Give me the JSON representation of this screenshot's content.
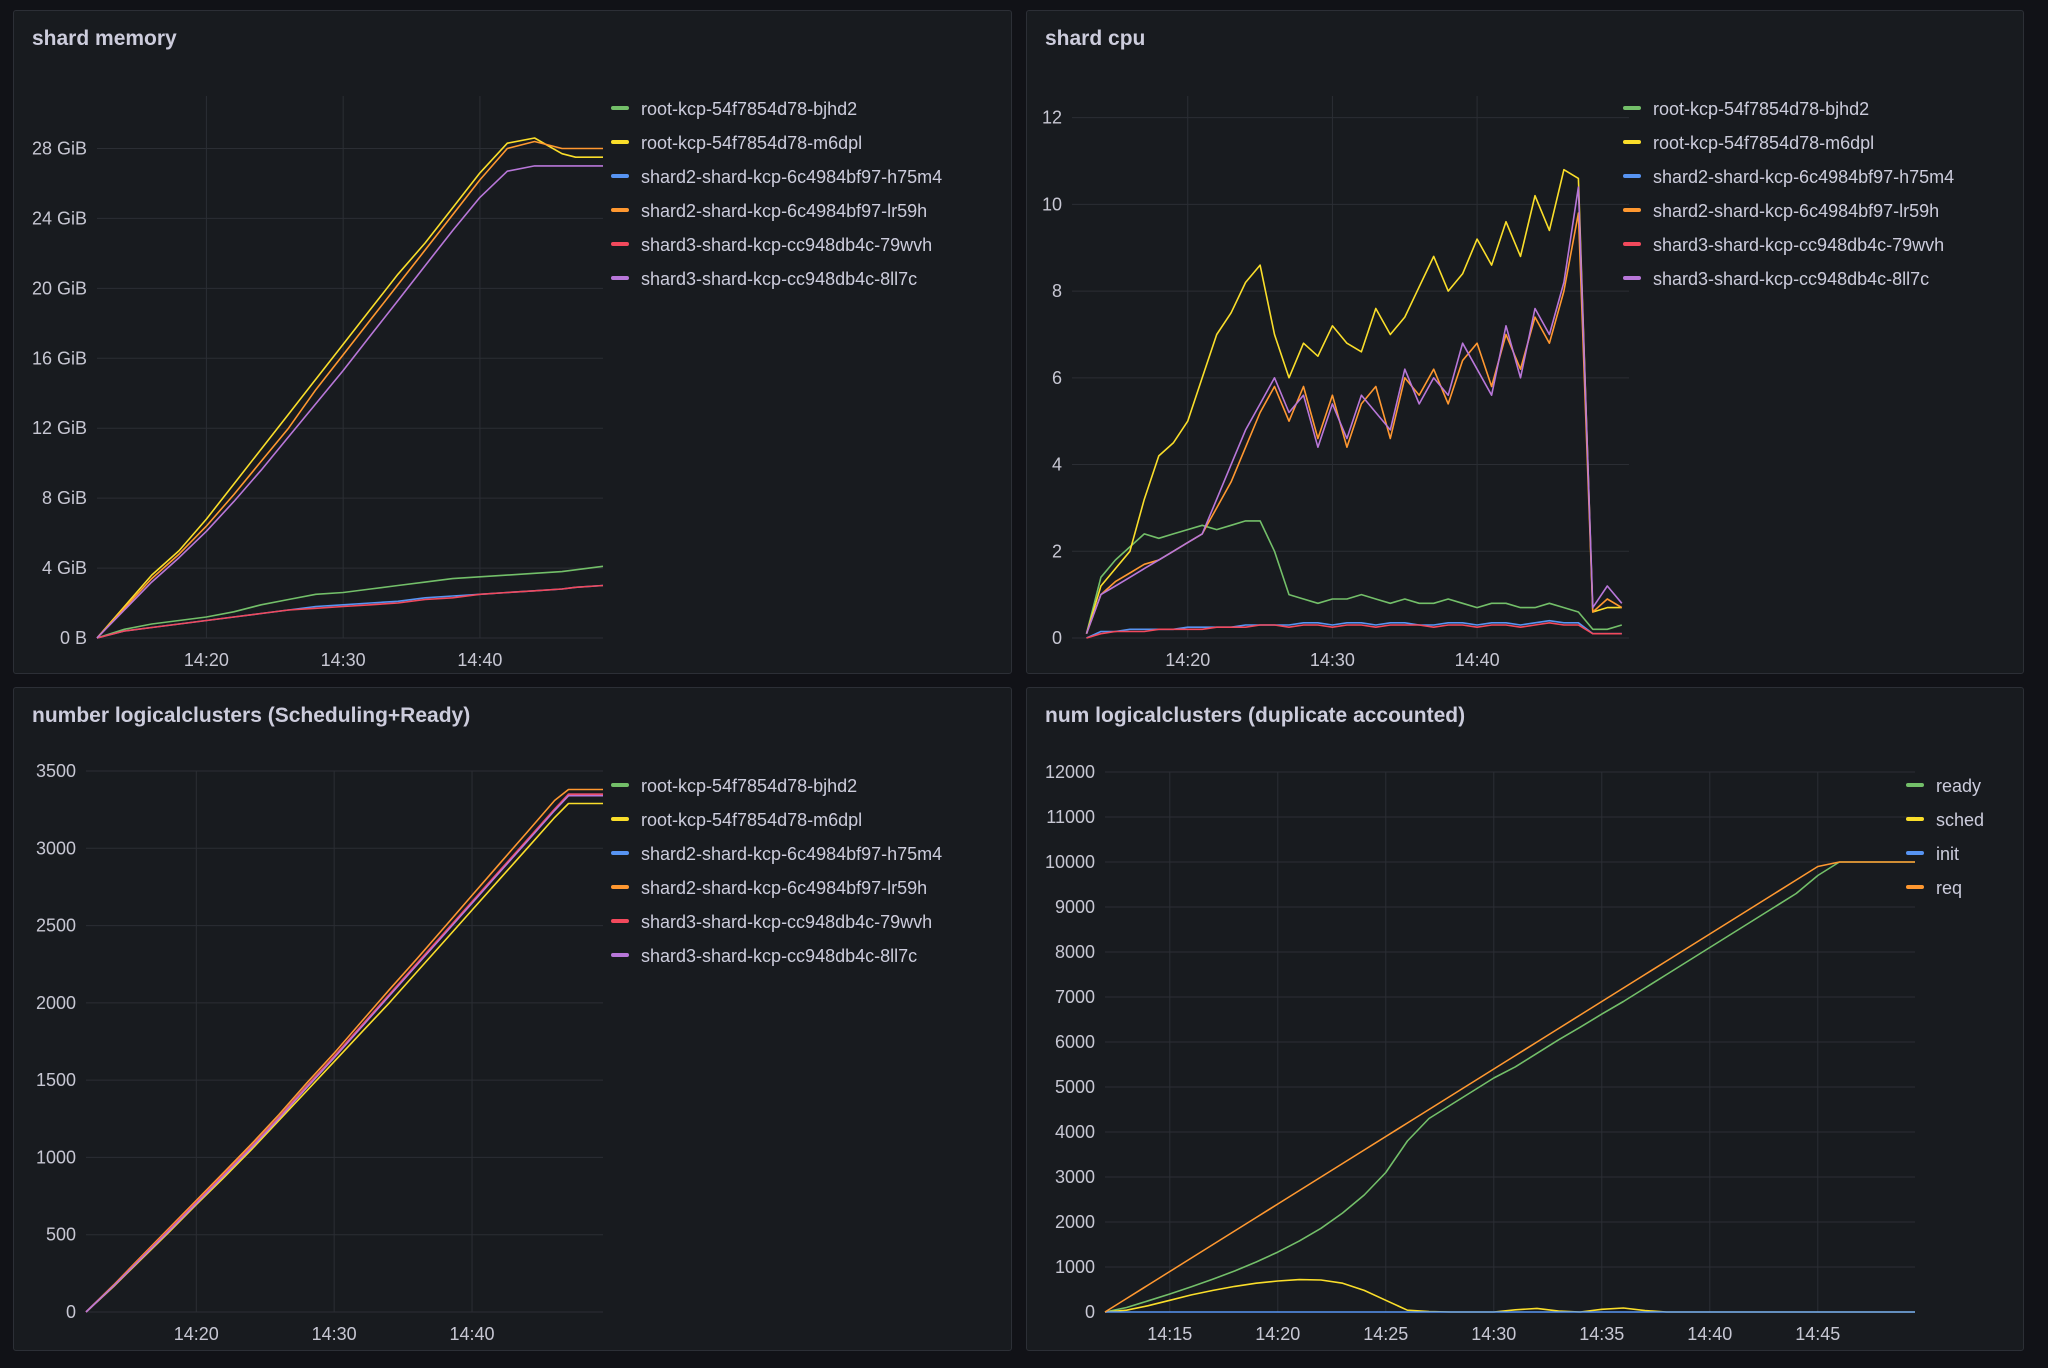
{
  "chart_data": [
    {
      "id": "mem",
      "type": "line",
      "title": "shard memory",
      "xlabel": "",
      "ylabel": "",
      "x_ticks": [
        "14:20",
        "14:30",
        "14:40"
      ],
      "y_ticks": [
        "0 B",
        "4 GiB",
        "8 GiB",
        "12 GiB",
        "16 GiB",
        "20 GiB",
        "24 GiB",
        "28 GiB"
      ],
      "xlim": [
        12,
        49
      ],
      "ylim": [
        0,
        31
      ],
      "grid": true,
      "legend_position": "right",
      "x": [
        12,
        14,
        16,
        18,
        20,
        22,
        24,
        26,
        28,
        30,
        32,
        34,
        36,
        38,
        40,
        42,
        44,
        46,
        47,
        49
      ],
      "series": [
        {
          "name": "root-kcp-54f7854d78-bjhd2",
          "color": "#73bf69",
          "values": [
            0,
            0.5,
            0.8,
            1.0,
            1.2,
            1.5,
            1.9,
            2.2,
            2.5,
            2.6,
            2.8,
            3.0,
            3.2,
            3.4,
            3.5,
            3.6,
            3.7,
            3.8,
            3.9,
            4.1
          ]
        },
        {
          "name": "root-kcp-54f7854d78-m6dpl",
          "color": "#fade2a",
          "values": [
            0,
            1.8,
            3.6,
            5.0,
            6.8,
            8.8,
            10.8,
            12.8,
            14.8,
            16.8,
            18.8,
            20.8,
            22.6,
            24.6,
            26.6,
            28.3,
            28.6,
            27.7,
            27.5,
            27.5
          ]
        },
        {
          "name": "shard2-shard-kcp-6c4984bf97-h75m4",
          "color": "#5794f2",
          "values": [
            0,
            0.4,
            0.6,
            0.8,
            1.0,
            1.2,
            1.4,
            1.6,
            1.8,
            1.9,
            2.0,
            2.1,
            2.3,
            2.4,
            2.5,
            2.6,
            2.7,
            2.8,
            2.9,
            3.0
          ]
        },
        {
          "name": "shard2-shard-kcp-6c4984bf97-lr59h",
          "color": "#ff9830",
          "values": [
            0,
            1.7,
            3.4,
            4.8,
            6.4,
            8.2,
            10.1,
            12.0,
            14.2,
            16.2,
            18.2,
            20.2,
            22.2,
            24.2,
            26.2,
            28.0,
            28.4,
            28.0,
            28.0,
            28.0
          ]
        },
        {
          "name": "shard3-shard-kcp-cc948db4c-79wvh",
          "color": "#f2495c",
          "values": [
            0,
            0.4,
            0.6,
            0.8,
            1.0,
            1.2,
            1.4,
            1.6,
            1.7,
            1.8,
            1.9,
            2.0,
            2.2,
            2.3,
            2.5,
            2.6,
            2.7,
            2.8,
            2.9,
            3.0
          ]
        },
        {
          "name": "shard3-shard-kcp-cc948db4c-8ll7c",
          "color": "#b877d9",
          "values": [
            0,
            1.6,
            3.2,
            4.6,
            6.1,
            7.8,
            9.6,
            11.5,
            13.4,
            15.3,
            17.3,
            19.3,
            21.3,
            23.3,
            25.2,
            26.7,
            27.0,
            27.0,
            27.0,
            27.0
          ]
        }
      ]
    },
    {
      "id": "cpu",
      "type": "line",
      "title": "shard cpu",
      "xlabel": "",
      "ylabel": "",
      "x_ticks": [
        "14:20",
        "14:30",
        "14:40"
      ],
      "y_ticks": [
        "0",
        "2",
        "4",
        "6",
        "8",
        "10",
        "12"
      ],
      "xlim": [
        12,
        50.5
      ],
      "ylim": [
        0,
        12.5
      ],
      "grid": true,
      "legend_position": "right",
      "x": [
        13,
        14,
        15,
        16,
        17,
        18,
        19,
        20,
        21,
        22,
        23,
        24,
        25,
        26,
        27,
        28,
        29,
        30,
        31,
        32,
        33,
        34,
        35,
        36,
        37,
        38,
        39,
        40,
        41,
        42,
        43,
        44,
        45,
        46,
        47,
        48,
        49,
        50
      ],
      "series": [
        {
          "name": "root-kcp-54f7854d78-bjhd2",
          "color": "#73bf69",
          "values": [
            0.1,
            1.4,
            1.8,
            2.1,
            2.4,
            2.3,
            2.4,
            2.5,
            2.6,
            2.5,
            2.6,
            2.7,
            2.7,
            2.0,
            1.0,
            0.9,
            0.8,
            0.9,
            0.9,
            1.0,
            0.9,
            0.8,
            0.9,
            0.8,
            0.8,
            0.9,
            0.8,
            0.7,
            0.8,
            0.8,
            0.7,
            0.7,
            0.8,
            0.7,
            0.6,
            0.2,
            0.2,
            0.3
          ]
        },
        {
          "name": "root-kcp-54f7854d78-m6dpl",
          "color": "#fade2a",
          "values": [
            0.1,
            1.2,
            1.6,
            2.0,
            3.2,
            4.2,
            4.5,
            5.0,
            6.0,
            7.0,
            7.5,
            8.2,
            8.6,
            7.0,
            6.0,
            6.8,
            6.5,
            7.2,
            6.8,
            6.6,
            7.6,
            7.0,
            7.4,
            8.1,
            8.8,
            8.0,
            8.4,
            9.2,
            8.6,
            9.6,
            8.8,
            10.2,
            9.4,
            10.8,
            10.6,
            0.6,
            0.7,
            0.7
          ]
        },
        {
          "name": "shard2-shard-kcp-6c4984bf97-h75m4",
          "color": "#5794f2",
          "values": [
            0.0,
            0.15,
            0.15,
            0.2,
            0.2,
            0.2,
            0.2,
            0.25,
            0.25,
            0.25,
            0.25,
            0.3,
            0.3,
            0.3,
            0.3,
            0.35,
            0.35,
            0.3,
            0.35,
            0.35,
            0.3,
            0.35,
            0.35,
            0.3,
            0.3,
            0.35,
            0.35,
            0.3,
            0.35,
            0.35,
            0.3,
            0.35,
            0.4,
            0.35,
            0.35,
            0.1,
            0.1,
            0.1
          ]
        },
        {
          "name": "shard2-shard-kcp-6c4984bf97-lr59h",
          "color": "#ff9830",
          "values": [
            0.1,
            1.0,
            1.3,
            1.5,
            1.7,
            1.8,
            2.0,
            2.2,
            2.4,
            3.0,
            3.6,
            4.4,
            5.2,
            5.8,
            5.0,
            5.8,
            4.6,
            5.6,
            4.4,
            5.4,
            5.8,
            4.6,
            6.0,
            5.6,
            6.2,
            5.4,
            6.4,
            6.8,
            5.8,
            7.0,
            6.2,
            7.4,
            6.8,
            8.0,
            9.8,
            0.6,
            0.9,
            0.7
          ]
        },
        {
          "name": "shard3-shard-kcp-cc948db4c-79wvh",
          "color": "#f2495c",
          "values": [
            0.0,
            0.1,
            0.15,
            0.15,
            0.15,
            0.2,
            0.2,
            0.2,
            0.2,
            0.25,
            0.25,
            0.25,
            0.3,
            0.3,
            0.25,
            0.3,
            0.3,
            0.25,
            0.3,
            0.3,
            0.25,
            0.3,
            0.3,
            0.3,
            0.25,
            0.3,
            0.3,
            0.25,
            0.3,
            0.3,
            0.25,
            0.3,
            0.35,
            0.3,
            0.3,
            0.1,
            0.1,
            0.1
          ]
        },
        {
          "name": "shard3-shard-kcp-cc948db4c-8ll7c",
          "color": "#b877d9",
          "values": [
            0.1,
            1.0,
            1.2,
            1.4,
            1.6,
            1.8,
            2.0,
            2.2,
            2.4,
            3.2,
            4.0,
            4.8,
            5.4,
            6.0,
            5.2,
            5.6,
            4.4,
            5.4,
            4.6,
            5.6,
            5.2,
            4.8,
            6.2,
            5.4,
            6.0,
            5.6,
            6.8,
            6.2,
            5.6,
            7.2,
            6.0,
            7.6,
            7.0,
            8.2,
            10.4,
            0.7,
            1.2,
            0.8
          ]
        }
      ]
    },
    {
      "id": "lc",
      "type": "line",
      "title": "number logicalclusters (Scheduling+Ready)",
      "xlabel": "",
      "ylabel": "",
      "x_ticks": [
        "14:20",
        "14:30",
        "14:40"
      ],
      "y_ticks": [
        "0",
        "500",
        "1000",
        "1500",
        "2000",
        "2500",
        "3000",
        "3500"
      ],
      "xlim": [
        12,
        49.5
      ],
      "ylim": [
        0,
        3500
      ],
      "grid": true,
      "legend_position": "right",
      "x": [
        12,
        14,
        16,
        18,
        20,
        22,
        24,
        26,
        28,
        30,
        32,
        34,
        36,
        38,
        40,
        42,
        44,
        46,
        47,
        49.5
      ],
      "series": [
        {
          "name": "root-kcp-54f7854d78-bjhd2",
          "color": "#73bf69",
          "values": [
            0,
            170,
            350,
            530,
            710,
            890,
            1070,
            1260,
            1460,
            1650,
            1850,
            2050,
            2250,
            2450,
            2650,
            2850,
            3050,
            3250,
            3340,
            3340
          ]
        },
        {
          "name": "root-kcp-54f7854d78-m6dpl",
          "color": "#fade2a",
          "values": [
            0,
            165,
            340,
            515,
            695,
            870,
            1050,
            1240,
            1430,
            1620,
            1810,
            2000,
            2200,
            2400,
            2600,
            2800,
            3000,
            3200,
            3290,
            3290
          ]
        },
        {
          "name": "shard2-shard-kcp-6c4984bf97-h75m4",
          "color": "#5794f2",
          "values": [
            0,
            172,
            352,
            532,
            712,
            892,
            1072,
            1262,
            1462,
            1652,
            1852,
            2052,
            2252,
            2452,
            2652,
            2852,
            3052,
            3252,
            3350,
            3350
          ]
        },
        {
          "name": "shard2-shard-kcp-6c4984bf97-lr59h",
          "color": "#ff9830",
          "values": [
            0,
            175,
            358,
            540,
            722,
            904,
            1086,
            1278,
            1480,
            1675,
            1880,
            2085,
            2285,
            2490,
            2695,
            2900,
            3105,
            3310,
            3380,
            3380
          ]
        },
        {
          "name": "shard3-shard-kcp-cc948db4c-79wvh",
          "color": "#f2495c",
          "values": [
            0,
            170,
            350,
            530,
            710,
            890,
            1070,
            1260,
            1460,
            1655,
            1855,
            2055,
            2255,
            2455,
            2655,
            2855,
            3055,
            3255,
            3350,
            3350
          ]
        },
        {
          "name": "shard3-shard-kcp-cc948db4c-8ll7c",
          "color": "#b877d9",
          "values": [
            0,
            168,
            345,
            522,
            702,
            882,
            1062,
            1252,
            1450,
            1645,
            1845,
            2045,
            2245,
            2445,
            2645,
            2845,
            3045,
            3245,
            3340,
            3340
          ]
        }
      ]
    },
    {
      "id": "dup",
      "type": "line",
      "title": "num logicalclusters (duplicate accounted)",
      "xlabel": "",
      "ylabel": "",
      "x_ticks": [
        "14:15",
        "14:20",
        "14:25",
        "14:30",
        "14:35",
        "14:40",
        "14:45"
      ],
      "y_ticks": [
        "0",
        "1000",
        "2000",
        "3000",
        "4000",
        "5000",
        "6000",
        "7000",
        "8000",
        "9000",
        "10000",
        "11000",
        "12000"
      ],
      "xlim": [
        12,
        49.5
      ],
      "ylim": [
        0,
        12000
      ],
      "grid": true,
      "legend_position": "right",
      "x": [
        12,
        13,
        14,
        15,
        16,
        17,
        18,
        19,
        20,
        21,
        22,
        23,
        24,
        25,
        26,
        27,
        28,
        29,
        30,
        31,
        32,
        33,
        34,
        35,
        36,
        37,
        38,
        39,
        40,
        41,
        42,
        43,
        44,
        45,
        46,
        47,
        48,
        49.5
      ],
      "series": [
        {
          "name": "ready",
          "color": "#73bf69",
          "values": [
            0,
            100,
            250,
            400,
            560,
            730,
            910,
            1110,
            1330,
            1580,
            1860,
            2200,
            2600,
            3100,
            3800,
            4300,
            4600,
            4900,
            5200,
            5450,
            5750,
            6050,
            6330,
            6620,
            6900,
            7200,
            7500,
            7800,
            8100,
            8400,
            8700,
            9000,
            9300,
            9700,
            10000,
            10000,
            10000,
            10000
          ]
        },
        {
          "name": "sched",
          "color": "#fade2a",
          "values": [
            0,
            40,
            140,
            260,
            380,
            480,
            570,
            640,
            690,
            720,
            710,
            640,
            480,
            260,
            40,
            10,
            0,
            0,
            0,
            50,
            80,
            20,
            0,
            60,
            90,
            30,
            0,
            0,
            0,
            0,
            0,
            0,
            0,
            0,
            0,
            0,
            0,
            0
          ]
        },
        {
          "name": "init",
          "color": "#5794f2",
          "values": [
            0,
            0,
            0,
            0,
            0,
            0,
            0,
            0,
            0,
            0,
            0,
            0,
            0,
            0,
            0,
            0,
            0,
            0,
            0,
            0,
            0,
            0,
            0,
            0,
            0,
            0,
            0,
            0,
            0,
            0,
            0,
            0,
            0,
            0,
            0,
            0,
            0,
            0
          ]
        },
        {
          "name": "req",
          "color": "#ff9830",
          "values": [
            0,
            300,
            600,
            900,
            1200,
            1500,
            1800,
            2100,
            2400,
            2700,
            3000,
            3300,
            3600,
            3900,
            4200,
            4500,
            4800,
            5100,
            5400,
            5700,
            6000,
            6300,
            6600,
            6900,
            7200,
            7500,
            7800,
            8100,
            8400,
            8700,
            9000,
            9300,
            9600,
            9900,
            10000,
            10000,
            10000,
            10000
          ]
        }
      ]
    }
  ]
}
